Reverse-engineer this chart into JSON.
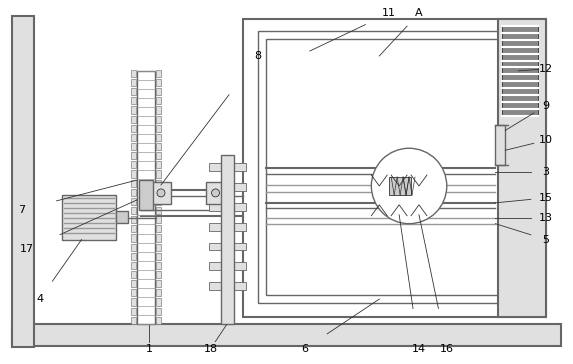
{
  "bg_color": "#ffffff",
  "line_color": "#666666",
  "dark_line": "#333333",
  "mid_gray": "#999999",
  "fill_gray": "#cccccc",
  "fill_light": "#e0e0e0",
  "fill_dark": "#888888"
}
